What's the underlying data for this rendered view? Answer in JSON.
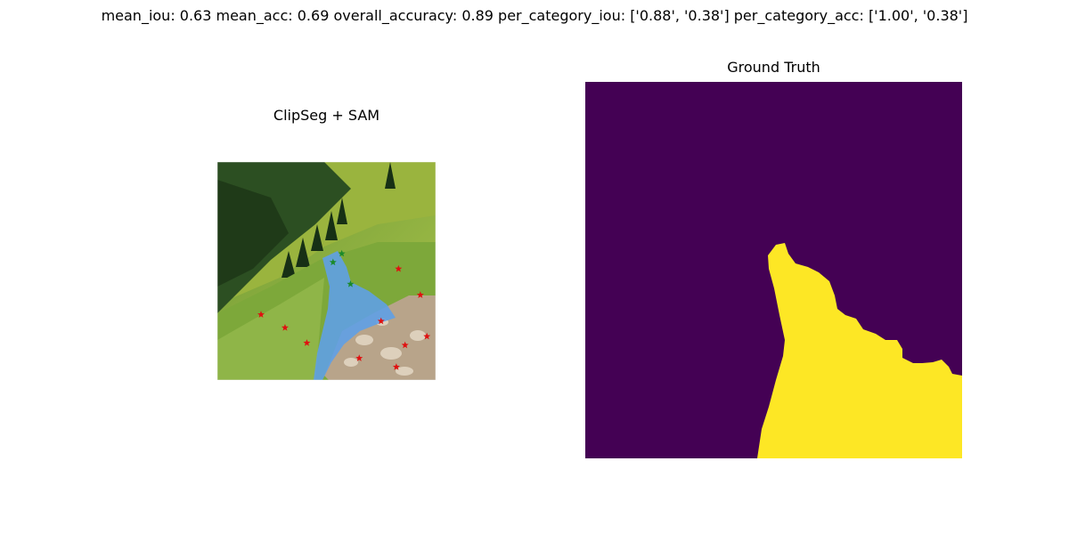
{
  "figure": {
    "suptitle": "mean_iou: 0.63  mean_acc: 0.69  overall_accuracy: 0.89  per_category_iou: ['0.88', '0.38']  per_category_acc: ['1.00', '0.38']"
  },
  "panels": {
    "left_title": "ClipSeg + SAM",
    "right_title": "Ground Truth"
  },
  "chart_data": [
    {
      "type": "image",
      "title": "ClipSeg + SAM",
      "content": "photo of a green mountain slope with a rocky stream, predicted stream mask overlaid in blue",
      "colors": {
        "mask": "#5fa0e6",
        "positive_point": "#1a8a2a",
        "negative_point": "#e01010"
      },
      "positive_points": [
        [
          0.57,
          0.42
        ],
        [
          0.53,
          0.46
        ],
        [
          0.61,
          0.56
        ]
      ],
      "negative_points": [
        [
          0.2,
          0.7
        ],
        [
          0.31,
          0.76
        ],
        [
          0.41,
          0.83
        ],
        [
          0.65,
          0.9
        ],
        [
          0.75,
          0.73
        ],
        [
          0.83,
          0.49
        ],
        [
          0.93,
          0.61
        ],
        [
          0.86,
          0.84
        ],
        [
          0.96,
          0.8
        ],
        [
          0.82,
          0.94
        ]
      ]
    },
    {
      "type": "heatmap",
      "title": "Ground Truth",
      "colors": {
        "background": "#440154",
        "foreground": "#fde725"
      },
      "classes": [
        "background",
        "stream"
      ]
    }
  ]
}
